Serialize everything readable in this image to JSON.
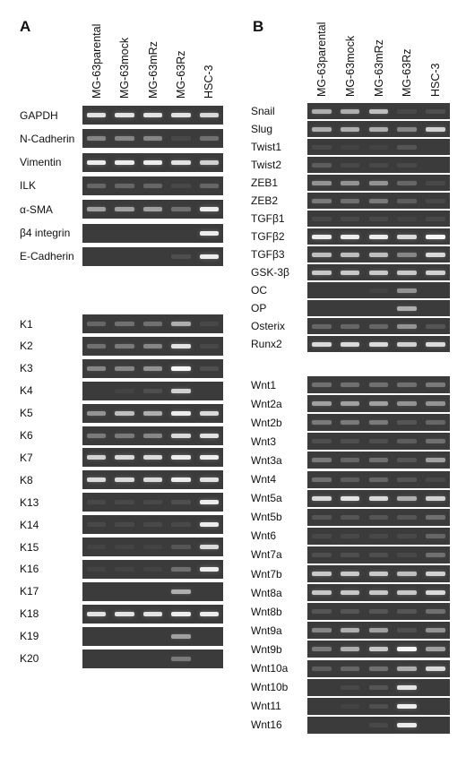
{
  "panel_a": {
    "letter": "A",
    "lanes": [
      "MG-63parental",
      "MG-63mock",
      "MG-63mRz",
      "MG-63Rz",
      "HSC-3"
    ],
    "top_rows": [
      {
        "label": "GAPDH",
        "bands": [
          0.85,
          0.85,
          0.85,
          0.85,
          0.8
        ]
      },
      {
        "label": "N-Cadherin",
        "bands": [
          0.45,
          0.45,
          0.45,
          0.1,
          0.35
        ]
      },
      {
        "label": "Vimentin",
        "bands": [
          0.9,
          0.9,
          0.9,
          0.85,
          0.75
        ]
      },
      {
        "label": "ILK",
        "bands": [
          0.3,
          0.3,
          0.3,
          0.1,
          0.3
        ]
      },
      {
        "label": "α-SMA",
        "bands": [
          0.55,
          0.55,
          0.55,
          0.35,
          0.9
        ]
      },
      {
        "label": "β4 integrin",
        "bands": [
          0,
          0,
          0,
          0,
          0.9
        ]
      },
      {
        "label": "E-Cadherin",
        "bands": [
          0,
          0,
          0,
          0.15,
          0.9
        ]
      }
    ],
    "bottom_rows": [
      {
        "label": "K1",
        "bands": [
          0.3,
          0.35,
          0.35,
          0.6,
          0.1
        ]
      },
      {
        "label": "K2",
        "bands": [
          0.35,
          0.4,
          0.45,
          0.85,
          0.1
        ]
      },
      {
        "label": "K3",
        "bands": [
          0.45,
          0.45,
          0.5,
          0.95,
          0.15
        ]
      },
      {
        "label": "K4",
        "bands": [
          0,
          0.05,
          0.15,
          0.75,
          0
        ]
      },
      {
        "label": "K5",
        "bands": [
          0.5,
          0.65,
          0.6,
          0.9,
          0.8
        ]
      },
      {
        "label": "K6",
        "bands": [
          0.4,
          0.4,
          0.45,
          0.8,
          0.85
        ]
      },
      {
        "label": "K7",
        "bands": [
          0.75,
          0.8,
          0.8,
          0.9,
          0.9
        ]
      },
      {
        "label": "K8",
        "bands": [
          0.8,
          0.8,
          0.8,
          0.9,
          0.85
        ]
      },
      {
        "label": "K13",
        "bands": [
          0.1,
          0.1,
          0.1,
          0.15,
          0.9
        ]
      },
      {
        "label": "K14",
        "bands": [
          0.1,
          0.1,
          0.1,
          0.1,
          0.9
        ]
      },
      {
        "label": "K15",
        "bands": [
          0.05,
          0.05,
          0.05,
          0.2,
          0.8
        ]
      },
      {
        "label": "K16",
        "bands": [
          0.05,
          0.05,
          0.05,
          0.35,
          0.9
        ]
      },
      {
        "label": "K17",
        "bands": [
          0,
          0,
          0,
          0.6,
          0
        ]
      },
      {
        "label": "K18",
        "bands": [
          0.85,
          0.85,
          0.85,
          0.9,
          0.9
        ]
      },
      {
        "label": "K19",
        "bands": [
          0,
          0,
          0,
          0.55,
          0
        ]
      },
      {
        "label": "K20",
        "bands": [
          0,
          0,
          0,
          0.4,
          0
        ]
      }
    ]
  },
  "panel_b": {
    "letter": "B",
    "lanes": [
      "MG-63parental",
      "MG-63mock",
      "MG-63mRz",
      "MG-63Rz",
      "HSC-3"
    ],
    "top_rows": [
      {
        "label": "Snail",
        "bands": [
          0.6,
          0.6,
          0.65,
          0.1,
          0.15
        ]
      },
      {
        "label": "Slug",
        "bands": [
          0.6,
          0.6,
          0.6,
          0.45,
          0.75
        ]
      },
      {
        "label": "Twist1",
        "bands": [
          0.1,
          0.05,
          0.05,
          0.2,
          0
        ]
      },
      {
        "label": "Twist2",
        "bands": [
          0.25,
          0.1,
          0.1,
          0.1,
          0
        ]
      },
      {
        "label": "ZEB1",
        "bands": [
          0.5,
          0.5,
          0.5,
          0.3,
          0.1
        ]
      },
      {
        "label": "ZEB2",
        "bands": [
          0.4,
          0.35,
          0.4,
          0.25,
          0.1
        ]
      },
      {
        "label": "TGFβ1",
        "bands": [
          0.1,
          0.1,
          0.1,
          0.05,
          0.1
        ]
      },
      {
        "label": "TGFβ2",
        "bands": [
          0.9,
          0.9,
          0.9,
          0.8,
          0.95
        ]
      },
      {
        "label": "TGFβ3",
        "bands": [
          0.65,
          0.65,
          0.65,
          0.45,
          0.8
        ]
      },
      {
        "label": "GSK-3β",
        "bands": [
          0.7,
          0.7,
          0.7,
          0.7,
          0.75
        ]
      },
      {
        "label": "OC",
        "bands": [
          0,
          0,
          0.05,
          0.5,
          0
        ]
      },
      {
        "label": "OP",
        "bands": [
          0,
          0,
          0,
          0.6,
          0
        ]
      },
      {
        "label": "Osterix",
        "bands": [
          0.3,
          0.3,
          0.3,
          0.5,
          0.2
        ]
      },
      {
        "label": "Runx2",
        "bands": [
          0.8,
          0.8,
          0.8,
          0.75,
          0.8
        ]
      }
    ],
    "bottom_rows": [
      {
        "label": "Wnt1",
        "bands": [
          0.35,
          0.35,
          0.35,
          0.35,
          0.4
        ]
      },
      {
        "label": "Wnt2a",
        "bands": [
          0.55,
          0.55,
          0.55,
          0.5,
          0.5
        ]
      },
      {
        "label": "Wnt2b",
        "bands": [
          0.4,
          0.4,
          0.4,
          0.2,
          0.3
        ]
      },
      {
        "label": "Wnt3",
        "bands": [
          0.15,
          0.15,
          0.15,
          0.25,
          0.35
        ]
      },
      {
        "label": "Wnt3a",
        "bands": [
          0.4,
          0.3,
          0.35,
          0.2,
          0.55
        ]
      },
      {
        "label": "Wnt4",
        "bands": [
          0.35,
          0.25,
          0.3,
          0.2,
          0.1
        ]
      },
      {
        "label": "Wnt5a",
        "bands": [
          0.8,
          0.85,
          0.8,
          0.6,
          0.75
        ]
      },
      {
        "label": "Wnt5b",
        "bands": [
          0.2,
          0.2,
          0.2,
          0.2,
          0.35
        ]
      },
      {
        "label": "Wnt6",
        "bands": [
          0.1,
          0.1,
          0.1,
          0.1,
          0.3
        ]
      },
      {
        "label": "Wnt7a",
        "bands": [
          0.15,
          0.15,
          0.15,
          0.1,
          0.35
        ]
      },
      {
        "label": "Wnt7b",
        "bands": [
          0.7,
          0.7,
          0.7,
          0.65,
          0.75
        ]
      },
      {
        "label": "Wnt8a",
        "bands": [
          0.7,
          0.7,
          0.7,
          0.7,
          0.8
        ]
      },
      {
        "label": "Wnt8b",
        "bands": [
          0.2,
          0.2,
          0.2,
          0.2,
          0.35
        ]
      },
      {
        "label": "Wnt9a",
        "bands": [
          0.45,
          0.6,
          0.55,
          0.15,
          0.5
        ]
      },
      {
        "label": "Wnt9b",
        "bands": [
          0.4,
          0.6,
          0.7,
          0.95,
          0.55
        ]
      },
      {
        "label": "Wnt10a",
        "bands": [
          0.25,
          0.3,
          0.35,
          0.6,
          0.8
        ]
      },
      {
        "label": "Wnt10b",
        "bands": [
          0,
          0.1,
          0.2,
          0.85,
          0
        ]
      },
      {
        "label": "Wnt11",
        "bands": [
          0,
          0.05,
          0.15,
          0.9,
          0
        ]
      },
      {
        "label": "Wnt16",
        "bands": [
          0,
          0,
          0.1,
          0.9,
          0
        ]
      }
    ]
  }
}
